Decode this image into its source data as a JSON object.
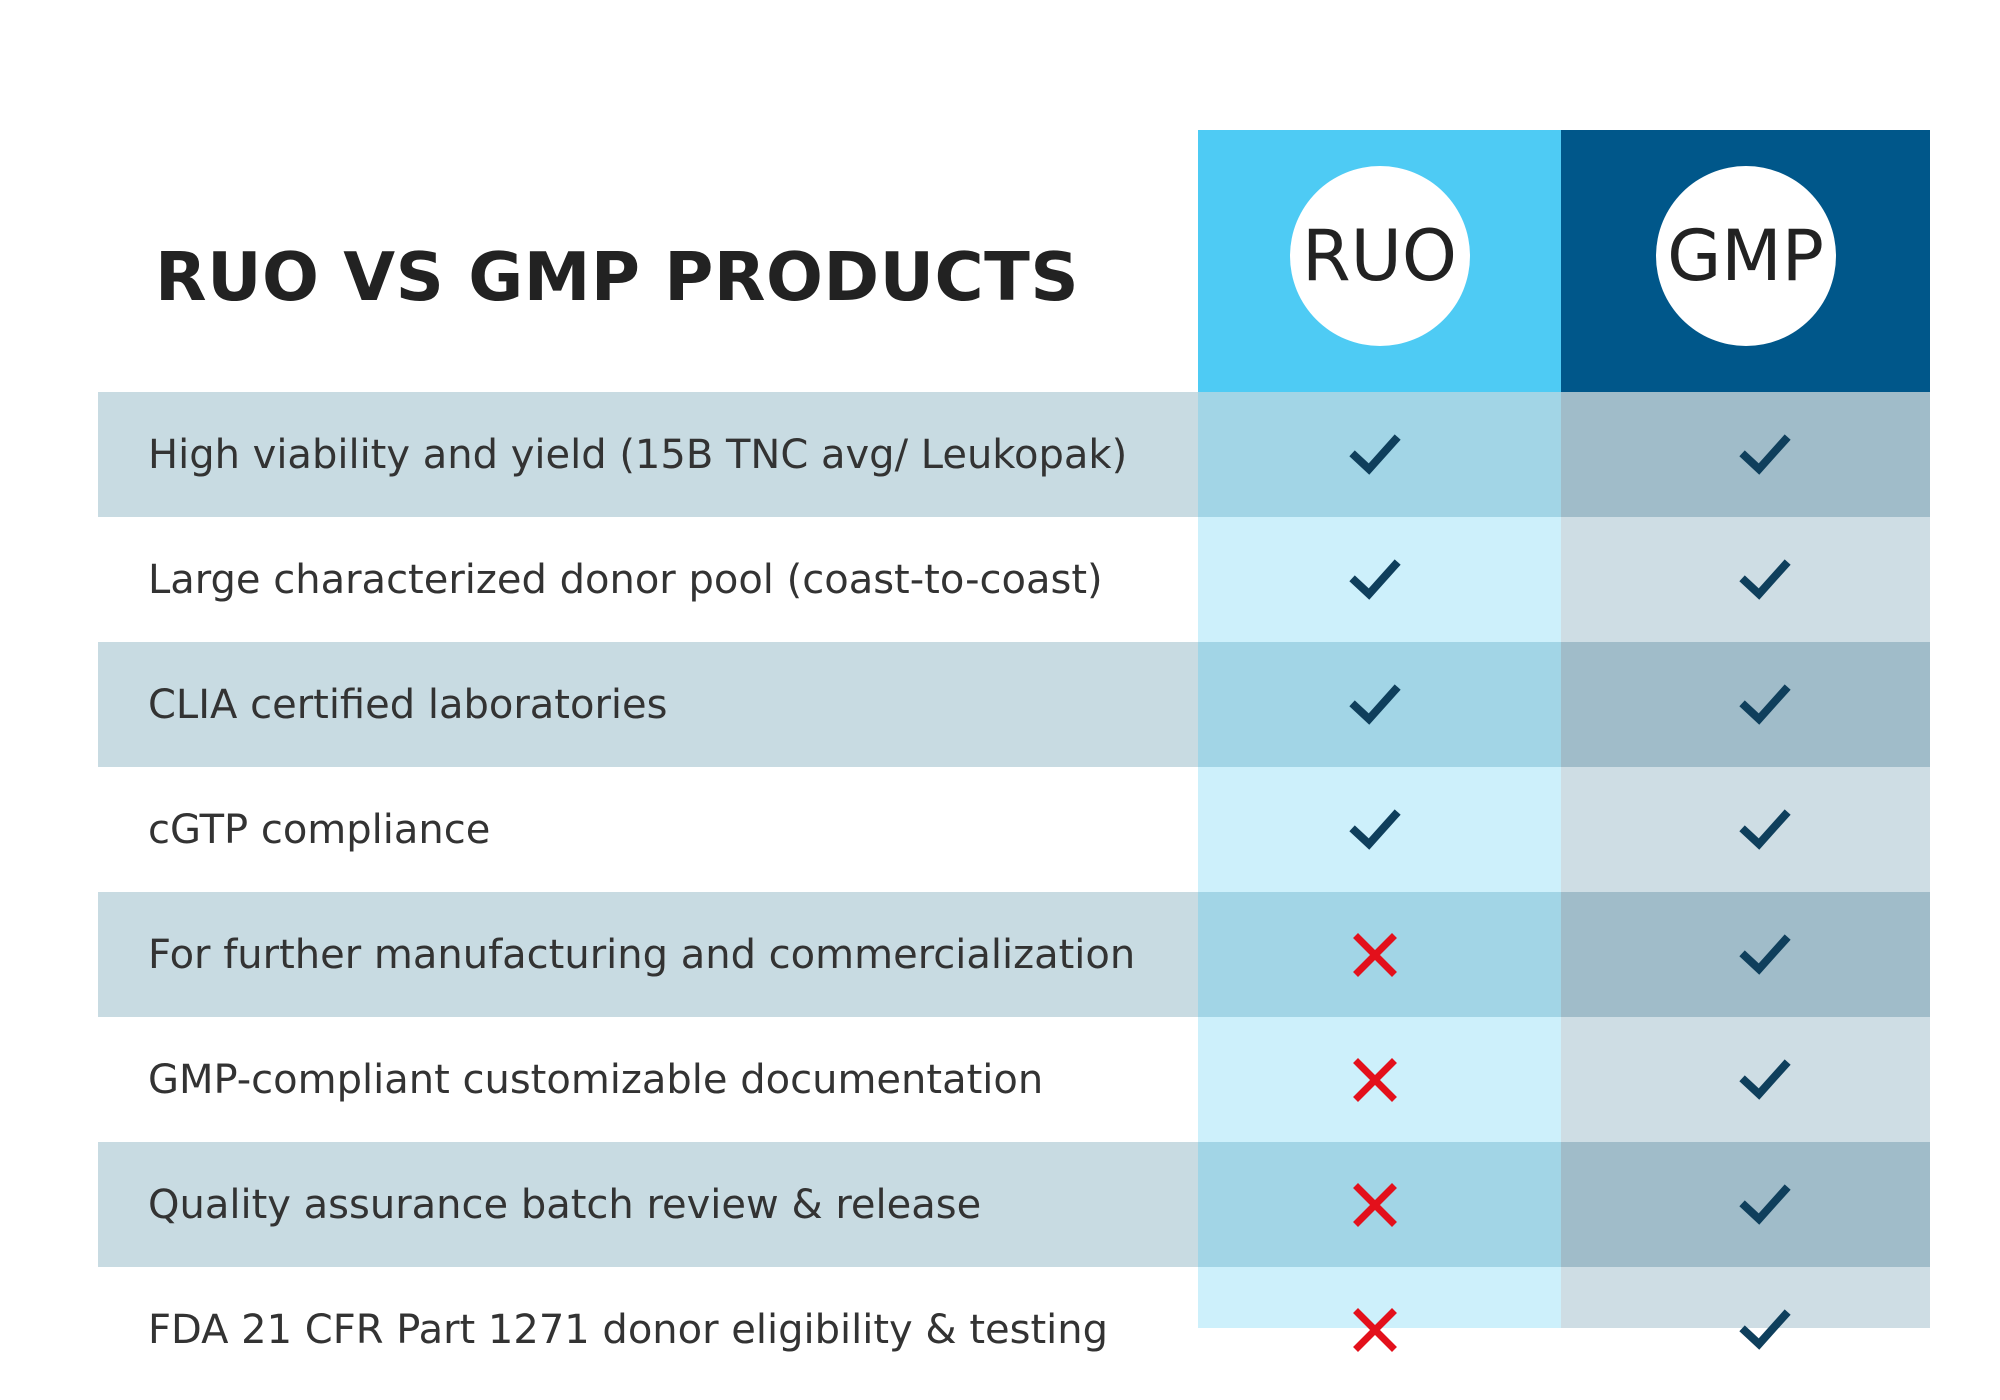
{
  "title": "RUO VS GMP PRODUCTS",
  "columns": {
    "ruo": {
      "label": "RUO",
      "color": "#4ecbf4"
    },
    "gmp": {
      "label": "GMP",
      "color": "#00578a"
    }
  },
  "colors": {
    "check": "#0f3f5c",
    "cross": "#e3101b"
  },
  "rows": [
    {
      "label": "High viability and yield (15B TNC avg/ Leukopak)",
      "ruo": "check-icon",
      "gmp": "check-icon"
    },
    {
      "label": "Large characterized donor pool (coast-to-coast)",
      "ruo": "check-icon",
      "gmp": "check-icon"
    },
    {
      "label": "CLIA certified laboratories",
      "ruo": "check-icon",
      "gmp": "check-icon"
    },
    {
      "label": "cGTP compliance",
      "ruo": "check-icon",
      "gmp": "check-icon"
    },
    {
      "label": "For further manufacturing and commercialization",
      "ruo": "cross-icon",
      "gmp": "check-icon"
    },
    {
      "label": "GMP-compliant customizable documentation",
      "ruo": "cross-icon",
      "gmp": "check-icon"
    },
    {
      "label": "Quality assurance batch review & release",
      "ruo": "cross-icon",
      "gmp": "check-icon"
    },
    {
      "label": "FDA 21 CFR Part 1271 donor eligibility & testing",
      "ruo": "cross-icon",
      "gmp": "check-icon"
    }
  ]
}
